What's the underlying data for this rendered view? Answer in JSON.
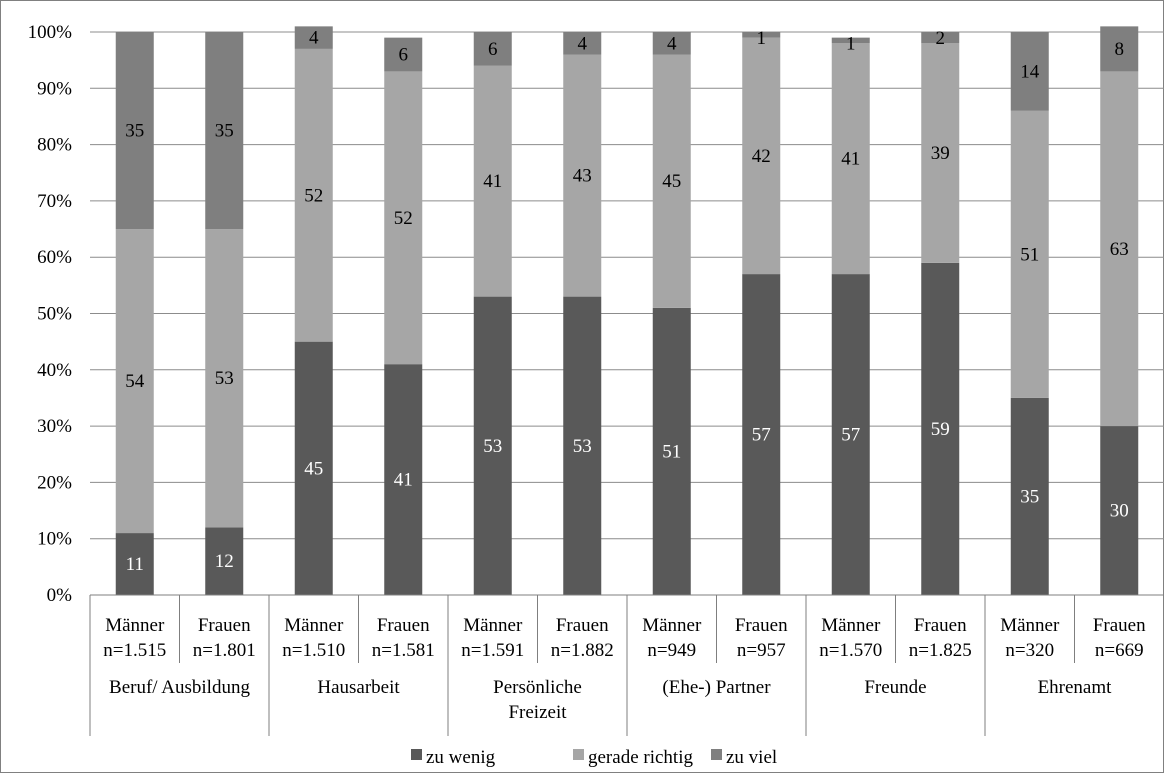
{
  "chart_data": {
    "type": "bar",
    "stacked": true,
    "percent_stacked": true,
    "grid": true,
    "legend_position": "bottom",
    "ylim": [
      0,
      100
    ],
    "y_ticks": [
      "0%",
      "10%",
      "20%",
      "30%",
      "40%",
      "50%",
      "60%",
      "70%",
      "80%",
      "90%",
      "100%"
    ],
    "groups": [
      "Beruf/ Ausbildung",
      "Hausarbeit",
      "Persönliche Freizeit",
      "(Ehe-) Partner",
      "Freunde",
      "Ehrenamt"
    ],
    "categories": [
      {
        "gender": "Männer",
        "n": "n=1.515",
        "group": 0
      },
      {
        "gender": "Frauen",
        "n": "n=1.801",
        "group": 0
      },
      {
        "gender": "Männer",
        "n": "n=1.510",
        "group": 1
      },
      {
        "gender": "Frauen",
        "n": "n=1.581",
        "group": 1
      },
      {
        "gender": "Männer",
        "n": "n=1.591",
        "group": 2
      },
      {
        "gender": "Frauen",
        "n": "n=1.882",
        "group": 2
      },
      {
        "gender": "Männer",
        "n": "n=949",
        "group": 3
      },
      {
        "gender": "Frauen",
        "n": "n=957",
        "group": 3
      },
      {
        "gender": "Männer",
        "n": "n=1.570",
        "group": 4
      },
      {
        "gender": "Frauen",
        "n": "n=1.825",
        "group": 4
      },
      {
        "gender": "Männer",
        "n": "n=320",
        "group": 5
      },
      {
        "gender": "Frauen",
        "n": "n=669",
        "group": 5
      }
    ],
    "series": [
      {
        "name": "zu wenig",
        "color": "#595959",
        "label_color": "#ffffff",
        "values": [
          11,
          12,
          45,
          41,
          53,
          53,
          51,
          57,
          57,
          59,
          35,
          30
        ]
      },
      {
        "name": "gerade richtig",
        "color": "#a6a6a6",
        "label_color": "#000000",
        "values": [
          54,
          53,
          52,
          52,
          41,
          43,
          45,
          42,
          41,
          39,
          51,
          63
        ]
      },
      {
        "name": "zu viel",
        "color": "#7f7f7f",
        "label_color": "#000000",
        "values": [
          35,
          35,
          4,
          6,
          6,
          4,
          4,
          1,
          1,
          2,
          14,
          8
        ]
      }
    ]
  }
}
